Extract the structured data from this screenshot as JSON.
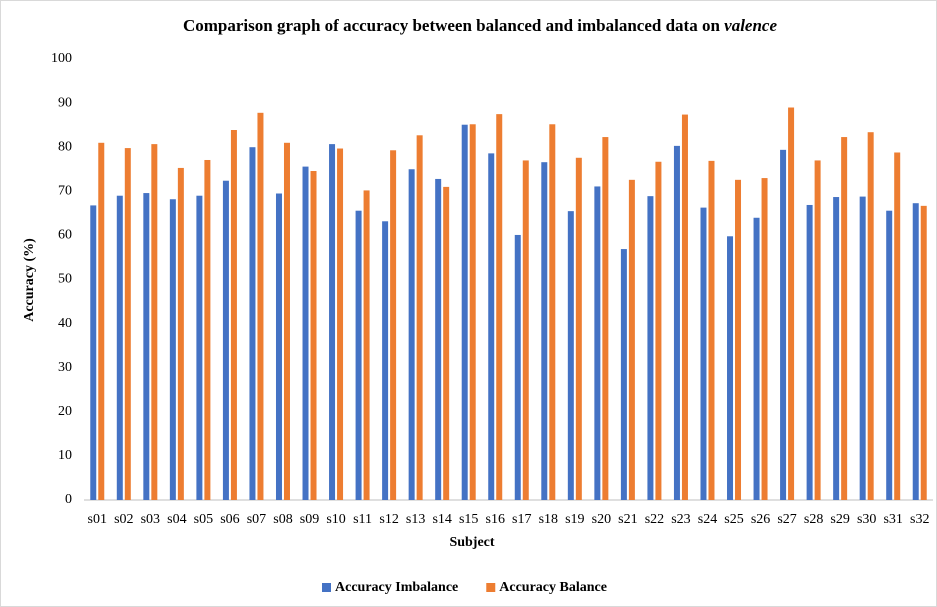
{
  "chart_data": {
    "type": "bar",
    "title": [
      "Comparison graph of accuracy between balanced and imbalanced data on",
      "valence"
    ],
    "x_label": "Subject",
    "y_label": "Accuracy (%)",
    "categories": [
      "s01",
      "s02",
      "s03",
      "s04",
      "s05",
      "s06",
      "s07",
      "s08",
      "s09",
      "s10",
      "s11",
      "s12",
      "s13",
      "s14",
      "s15",
      "s16",
      "s17",
      "s18",
      "s19",
      "s20",
      "s21",
      "s22",
      "s23",
      "s24",
      "s25",
      "s26",
      "s27",
      "s28",
      "s29",
      "s30",
      "s31",
      "s32"
    ],
    "series": [
      {
        "name": "Accuracy Imbalance",
        "color": "#4472c4",
        "values": [
          66.8,
          69,
          69.6,
          68.2,
          69,
          72.4,
          80,
          69.5,
          75.6,
          80.7,
          65.6,
          63.2,
          75,
          72.8,
          85.1,
          78.6,
          60.1,
          76.6,
          65.5,
          71.1,
          56.9,
          68.9,
          80.3,
          66.3,
          59.8,
          64,
          79.4,
          66.9,
          68.7,
          68.8,
          65.6,
          67.3
        ]
      },
      {
        "name": "Accuracy Balance",
        "color": "#ed7d31",
        "values": [
          81,
          79.8,
          80.7,
          75.3,
          77.1,
          83.9,
          87.8,
          81,
          74.6,
          79.7,
          70.2,
          79.3,
          82.7,
          71,
          85.2,
          87.5,
          77,
          85.2,
          77.6,
          82.3,
          72.6,
          76.7,
          87.4,
          76.9,
          72.6,
          73,
          89,
          77,
          82.3,
          83.4,
          78.8,
          66.7
        ]
      }
    ],
    "ylim": [
      0,
      100
    ],
    "yticks": [
      0,
      10,
      20,
      30,
      40,
      50,
      60,
      70,
      80,
      90,
      100
    ],
    "grid": false,
    "legend": "bottom"
  }
}
